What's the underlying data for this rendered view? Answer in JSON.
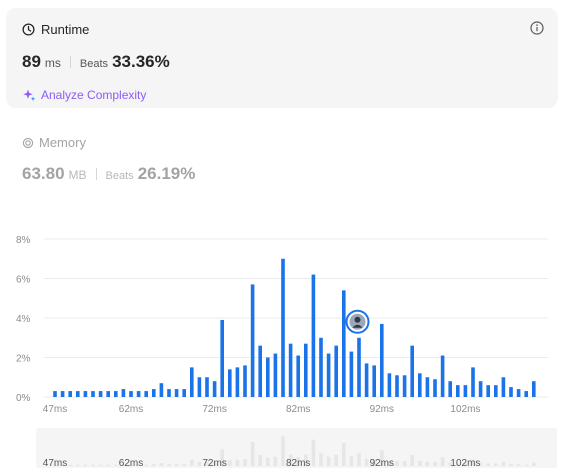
{
  "runtime": {
    "title": "Runtime",
    "value": "89",
    "unit": "ms",
    "beats_label": "Beats",
    "beats_value": "33.36%",
    "analyze_label": "Analyze Complexity",
    "info_icon": "info-icon"
  },
  "memory": {
    "title": "Memory",
    "value": "63.80",
    "unit": "MB",
    "beats_label": "Beats",
    "beats_value": "26.19%"
  },
  "colors": {
    "bar": "#1a73e8",
    "mini_bar": "#e6e6e6",
    "accent": "#8b5cf6",
    "card_bg": "#f5f5f5"
  },
  "chart_data": {
    "type": "bar",
    "y_ticks": [
      "8%",
      "6%",
      "4%",
      "2%",
      "0%"
    ],
    "x_ticks": [
      "47ms",
      "62ms",
      "72ms",
      "82ms",
      "92ms",
      "102ms"
    ],
    "ylim": [
      0,
      8
    ],
    "grid": true,
    "values": [
      0.3,
      0.3,
      0.3,
      0.3,
      0.3,
      0.3,
      0.3,
      0.3,
      0.3,
      0.4,
      0.3,
      0.3,
      0.3,
      0.4,
      0.7,
      0.4,
      0.4,
      0.4,
      1.5,
      1.0,
      1.0,
      0.8,
      3.9,
      1.4,
      1.5,
      1.6,
      5.7,
      2.6,
      2.0,
      2.2,
      7.0,
      2.7,
      2.1,
      2.7,
      6.2,
      3.0,
      2.2,
      2.6,
      5.4,
      2.3,
      3.0,
      1.7,
      1.6,
      3.7,
      1.2,
      1.1,
      1.1,
      2.6,
      1.2,
      1.0,
      0.9,
      2.1,
      0.8,
      0.6,
      0.6,
      1.5,
      0.8,
      0.6,
      0.6,
      1.0,
      0.5,
      0.4,
      0.3,
      0.8
    ],
    "current_index": 40
  }
}
